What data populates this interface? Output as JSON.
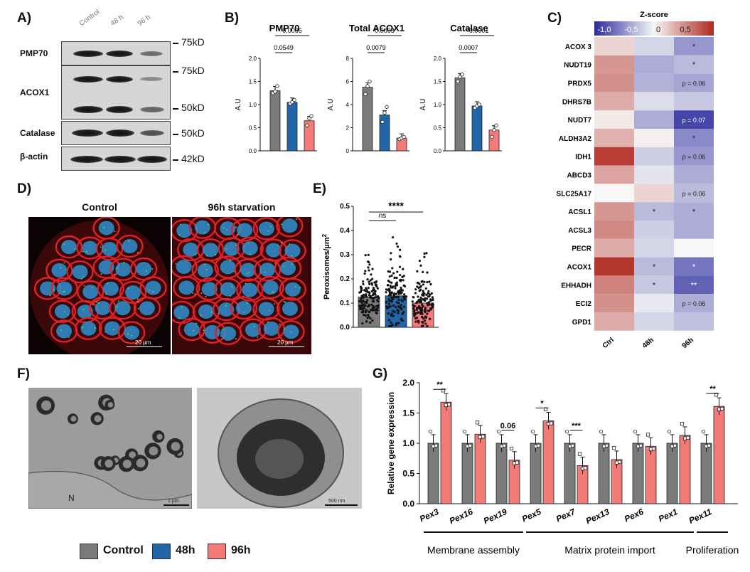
{
  "panels": {
    "a": "A)",
    "b": "B)",
    "c": "C)",
    "d": "D)",
    "e": "E)",
    "f": "F)",
    "g": "G)"
  },
  "western_blot": {
    "lanes": [
      "Control",
      "48 h",
      "96 h"
    ],
    "rows": [
      {
        "label": "PMP70",
        "kd": "75kD",
        "intensity": [
          1.0,
          0.9,
          0.5
        ]
      },
      {
        "label": "ACOX1",
        "kd": [
          "75kD",
          "50kD"
        ],
        "intensity": [
          1.0,
          0.85,
          0.4
        ]
      },
      {
        "label": "Catalase",
        "kd": "50kD",
        "intensity": [
          1.0,
          0.9,
          0.6
        ]
      },
      {
        "label": "β-actin",
        "kd": "42kD",
        "intensity": [
          1.0,
          1.0,
          1.0
        ]
      }
    ]
  },
  "colors": {
    "control": "#7a7a7a",
    "h48": "#2166a8",
    "h96": "#f47a78",
    "heat_low": "#2b2a9e",
    "heat_mid": "#f7f7f7",
    "heat_high": "#b0281f"
  },
  "chart_data": [
    {
      "panel": "B",
      "type": "bar",
      "title": "PMP70",
      "ylabel": "A.U",
      "ylim": [
        0,
        2.0
      ],
      "yticks": [
        "0.0",
        "0.5",
        "1.0",
        "1.5",
        "2.0"
      ],
      "categories": [
        "Control",
        "48h",
        "96h"
      ],
      "values": [
        1.3,
        1.05,
        0.65
      ],
      "points": [
        [
          1.25,
          1.28,
          1.4
        ],
        [
          1.02,
          1.05,
          1.1
        ],
        [
          0.55,
          0.7,
          0.75
        ]
      ],
      "annotations": [
        {
          "from": 0,
          "to": 1,
          "text": "0.0549"
        },
        {
          "from": 0,
          "to": 2,
          "text": "0.0006"
        }
      ]
    },
    {
      "panel": "B",
      "type": "bar",
      "title": "Total ACOX1",
      "ylabel": "A.U",
      "ylim": [
        0,
        8
      ],
      "yticks": [
        "0",
        "2",
        "4",
        "6",
        "8"
      ],
      "categories": [
        "Control",
        "48h",
        "96h"
      ],
      "values": [
        5.5,
        3.1,
        1.1
      ],
      "points": [
        [
          4.9,
          5.6,
          6.0
        ],
        [
          2.5,
          3.3,
          3.8
        ],
        [
          1.0,
          1.1,
          1.2
        ]
      ],
      "annotations": [
        {
          "from": 0,
          "to": 1,
          "text": "0.0079"
        },
        {
          "from": 0,
          "to": 2,
          "text": "0.0003"
        }
      ]
    },
    {
      "panel": "B",
      "type": "bar",
      "title": "Catalase",
      "ylabel": "A.U",
      "ylim": [
        0,
        2.0
      ],
      "yticks": [
        "0.0",
        "0.5",
        "1.0",
        "1.5",
        "2.0"
      ],
      "categories": [
        "Control",
        "48h",
        "96h"
      ],
      "values": [
        1.58,
        0.97,
        0.45
      ],
      "points": [
        [
          1.5,
          1.6,
          1.65
        ],
        [
          0.93,
          0.97,
          1.0
        ],
        [
          0.3,
          0.45,
          0.55
        ]
      ],
      "annotations": [
        {
          "from": 0,
          "to": 1,
          "text": "0.0007"
        },
        {
          "from": 0,
          "to": 2,
          "text": "<0.0001"
        }
      ]
    },
    {
      "panel": "C",
      "type": "heatmap",
      "colorbar_title": "Z-score",
      "colorbar_ticks": [
        "-1,0",
        "-0,5",
        "0",
        "0,5"
      ],
      "zrange": [
        -1.5,
        1.5
      ],
      "columns": [
        "Ctrl",
        "48h",
        "96h"
      ],
      "rows": [
        {
          "gene": "ACOX 3",
          "z": [
            0.25,
            -0.25,
            -0.7
          ],
          "labels": [
            "",
            "",
            "*"
          ]
        },
        {
          "gene": "NUDT19",
          "z": [
            0.7,
            -0.55,
            -0.45
          ],
          "labels": [
            "",
            "",
            "*"
          ]
        },
        {
          "gene": "PRDX5",
          "z": [
            0.75,
            -0.5,
            -0.6
          ],
          "labels": [
            "",
            "",
            "p = 0.06"
          ]
        },
        {
          "gene": "DHRS7B",
          "z": [
            0.55,
            -0.2,
            -0.35
          ],
          "labels": [
            "",
            "",
            ""
          ]
        },
        {
          "gene": "NUDT7",
          "z": [
            0.1,
            -0.55,
            -1.3
          ],
          "labels": [
            "",
            "",
            "p = 0.07"
          ]
        },
        {
          "gene": "ALDH3A2",
          "z": [
            0.5,
            0.05,
            -0.8
          ],
          "labels": [
            "",
            "",
            "*"
          ]
        },
        {
          "gene": "IDH1",
          "z": [
            1.35,
            -0.3,
            -0.7
          ],
          "labels": [
            "",
            "",
            "p = 0.06"
          ]
        },
        {
          "gene": "ABCD3",
          "z": [
            0.6,
            -0.15,
            -0.55
          ],
          "labels": [
            "",
            "",
            ""
          ]
        },
        {
          "gene": "SLC25A17",
          "z": [
            0.0,
            0.25,
            -0.45
          ],
          "labels": [
            "",
            "",
            "p = 0.06"
          ]
        },
        {
          "gene": "ACSL1",
          "z": [
            0.7,
            -0.45,
            -0.55
          ],
          "labels": [
            "",
            "*",
            "*"
          ]
        },
        {
          "gene": "ACSL3",
          "z": [
            0.8,
            -0.3,
            -0.55
          ],
          "labels": [
            "",
            "",
            ""
          ]
        },
        {
          "gene": "PECR",
          "z": [
            0.55,
            -0.25,
            0.0
          ],
          "labels": [
            "",
            "",
            ""
          ]
        },
        {
          "gene": "ACOX1",
          "z": [
            1.4,
            -0.45,
            -0.95
          ],
          "labels": [
            "",
            "*",
            "*"
          ]
        },
        {
          "gene": "EHHADH",
          "z": [
            0.85,
            -0.35,
            -1.1
          ],
          "labels": [
            "",
            "*",
            "**"
          ]
        },
        {
          "gene": "ECI2",
          "z": [
            0.75,
            -0.1,
            -0.55
          ],
          "labels": [
            "",
            "",
            "p = 0.06"
          ]
        },
        {
          "gene": "GPD1",
          "z": [
            0.55,
            -0.25,
            -0.4
          ],
          "labels": [
            "",
            "",
            ""
          ]
        }
      ]
    },
    {
      "panel": "E",
      "type": "scatter",
      "ylabel": "Peroxisomes/µm",
      "ylabel_sup": "2",
      "ylim": [
        0,
        0.5
      ],
      "yticks": [
        "0.0",
        "0.1",
        "0.2",
        "0.3",
        "0.4",
        "0.5"
      ],
      "categories": [
        "Control",
        "48h",
        "96h"
      ],
      "means": [
        0.125,
        0.13,
        0.1
      ],
      "ranges": [
        [
          0.0,
          0.3
        ],
        [
          0.0,
          0.38
        ],
        [
          0.0,
          0.31
        ]
      ],
      "annotations": [
        {
          "from": 0,
          "to": 1,
          "text": "ns"
        },
        {
          "from": 0,
          "to": 2,
          "text": "****"
        }
      ]
    },
    {
      "panel": "G",
      "type": "bar",
      "ylabel": "Relative gene expression",
      "ylim": [
        0,
        2.0
      ],
      "yticks": [
        "0.0",
        "0.5",
        "1.0",
        "1.5",
        "2.0"
      ],
      "categories": [
        "Pex3",
        "Pex16",
        "Pex19",
        "Pex5",
        "Pex7",
        "Pex13",
        "Pex6",
        "Pex1",
        "Pex11"
      ],
      "series": [
        {
          "name": "Control",
          "values": [
            1.0,
            1.0,
            1.0,
            1.0,
            1.0,
            1.0,
            1.0,
            1.0,
            1.0
          ]
        },
        {
          "name": "96h",
          "values": [
            1.68,
            1.15,
            0.72,
            1.37,
            0.63,
            0.73,
            0.95,
            1.13,
            1.61
          ]
        }
      ],
      "significance": [
        {
          "index": 0,
          "text": "**"
        },
        {
          "index": 2,
          "text": "0.06"
        },
        {
          "index": 3,
          "text": "*"
        },
        {
          "index": 4,
          "text": "***"
        },
        {
          "index": 8,
          "text": "**"
        }
      ],
      "groups": [
        {
          "label": "Membrane assembly",
          "from": 0,
          "to": 2
        },
        {
          "label": "Matrix protein import",
          "from": 3,
          "to": 7
        },
        {
          "label": "Proliferation",
          "from": 8,
          "to": 8
        }
      ]
    }
  ],
  "microscopy": {
    "left_title": "Control",
    "right_title": "96h starvation",
    "scale": "20 µm"
  },
  "em": {
    "nucleus": "N",
    "scale_left": "1 µm",
    "scale_right": "500 nm"
  },
  "legend": [
    {
      "label": "Control",
      "color": "#7a7a7a"
    },
    {
      "label": "48h",
      "color": "#2166a8"
    },
    {
      "label": "96h",
      "color": "#f47a78"
    }
  ]
}
